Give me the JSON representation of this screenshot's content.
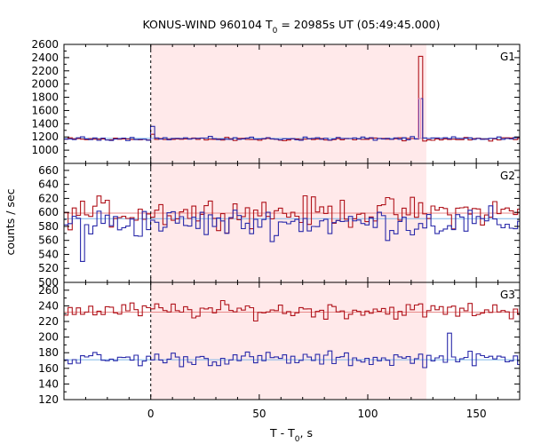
{
  "title_main": "KONUS-WIND 960104 T",
  "title_sub": "0",
  "title_rest": " = 20985s UT (05:49:45.000)",
  "xlabel_main": "T - T",
  "xlabel_sub": "0",
  "xlabel_rest": ", s",
  "ylabel": "counts / sec",
  "colors": {
    "shade": "#ffe9ea",
    "red": "#b0141c",
    "blue": "#2a2aaa",
    "bg_red": "#e88a8a",
    "bg_blue": "#7fb6e8",
    "pink": "#f08ab0",
    "frame": "#000000"
  },
  "chart_data": {
    "type": "line",
    "shared_x": {
      "range": [
        -40,
        170
      ],
      "ticks": [
        0,
        50,
        100,
        150
      ],
      "tick_labels": [
        "0",
        "50",
        "100",
        "150"
      ],
      "shaded_interval": [
        0,
        127
      ]
    },
    "panels": [
      {
        "label": "G1",
        "ylim": [
          800,
          2600
        ],
        "yticks": [
          800,
          1000,
          1200,
          1400,
          1600,
          1800,
          2000,
          2200,
          2400,
          2600
        ],
        "ytick_labels": [
          "",
          "1000",
          "1200",
          "1400",
          "1600",
          "1800",
          "2000",
          "2200",
          "2400",
          "2600"
        ],
        "series": [
          {
            "color": "red",
            "baseline": 1165,
            "noise": 22,
            "events": [
              {
                "x": 124,
                "dx": 1.6,
                "y": 2420
              },
              {
                "x": 1.5,
                "dx": 2,
                "y": 1240
              }
            ]
          },
          {
            "color": "blue",
            "baseline": 1175,
            "noise": 22,
            "events": [
              {
                "x": 1.5,
                "dx": 1.5,
                "y": 1360
              },
              {
                "x": 124,
                "dx": 1.6,
                "y": 1780
              }
            ]
          }
        ],
        "backgrounds": [
          {
            "color": "bg_blue",
            "y": 1178
          }
        ]
      },
      {
        "label": "G2",
        "ylim": [
          500,
          670
        ],
        "yticks": [
          500,
          520,
          540,
          560,
          580,
          600,
          620,
          640,
          660
        ],
        "ytick_labels": [
          "500",
          "520",
          "540",
          "560",
          "580",
          "600",
          "620",
          "640",
          "660"
        ],
        "series": [
          {
            "color": "red",
            "baseline": 600,
            "noise": 18,
            "events": []
          },
          {
            "color": "blue",
            "baseline": 585,
            "noise": 18,
            "events": [
              {
                "x": -31.5,
                "dx": 2,
                "y": 530
              }
            ]
          }
        ],
        "backgrounds": [
          {
            "color": "bg_red",
            "y": 599
          },
          {
            "color": "bg_blue",
            "y": 591
          }
        ]
      },
      {
        "label": "G3",
        "ylim": [
          120,
          270
        ],
        "yticks": [
          120,
          140,
          160,
          180,
          200,
          220,
          240,
          260
        ],
        "ytick_labels": [
          "120",
          "140",
          "160",
          "180",
          "200",
          "220",
          "240",
          "260"
        ],
        "series": [
          {
            "color": "red",
            "baseline": 234,
            "noise": 9,
            "events": []
          },
          {
            "color": "blue",
            "baseline": 172,
            "noise": 8,
            "events": [
              {
                "x": 137,
                "dx": 2,
                "y": 205
              }
            ]
          }
        ],
        "backgrounds": [
          {
            "color": "bg_red",
            "y": 232
          },
          {
            "color": "bg_blue",
            "y": 171
          }
        ]
      }
    ]
  }
}
